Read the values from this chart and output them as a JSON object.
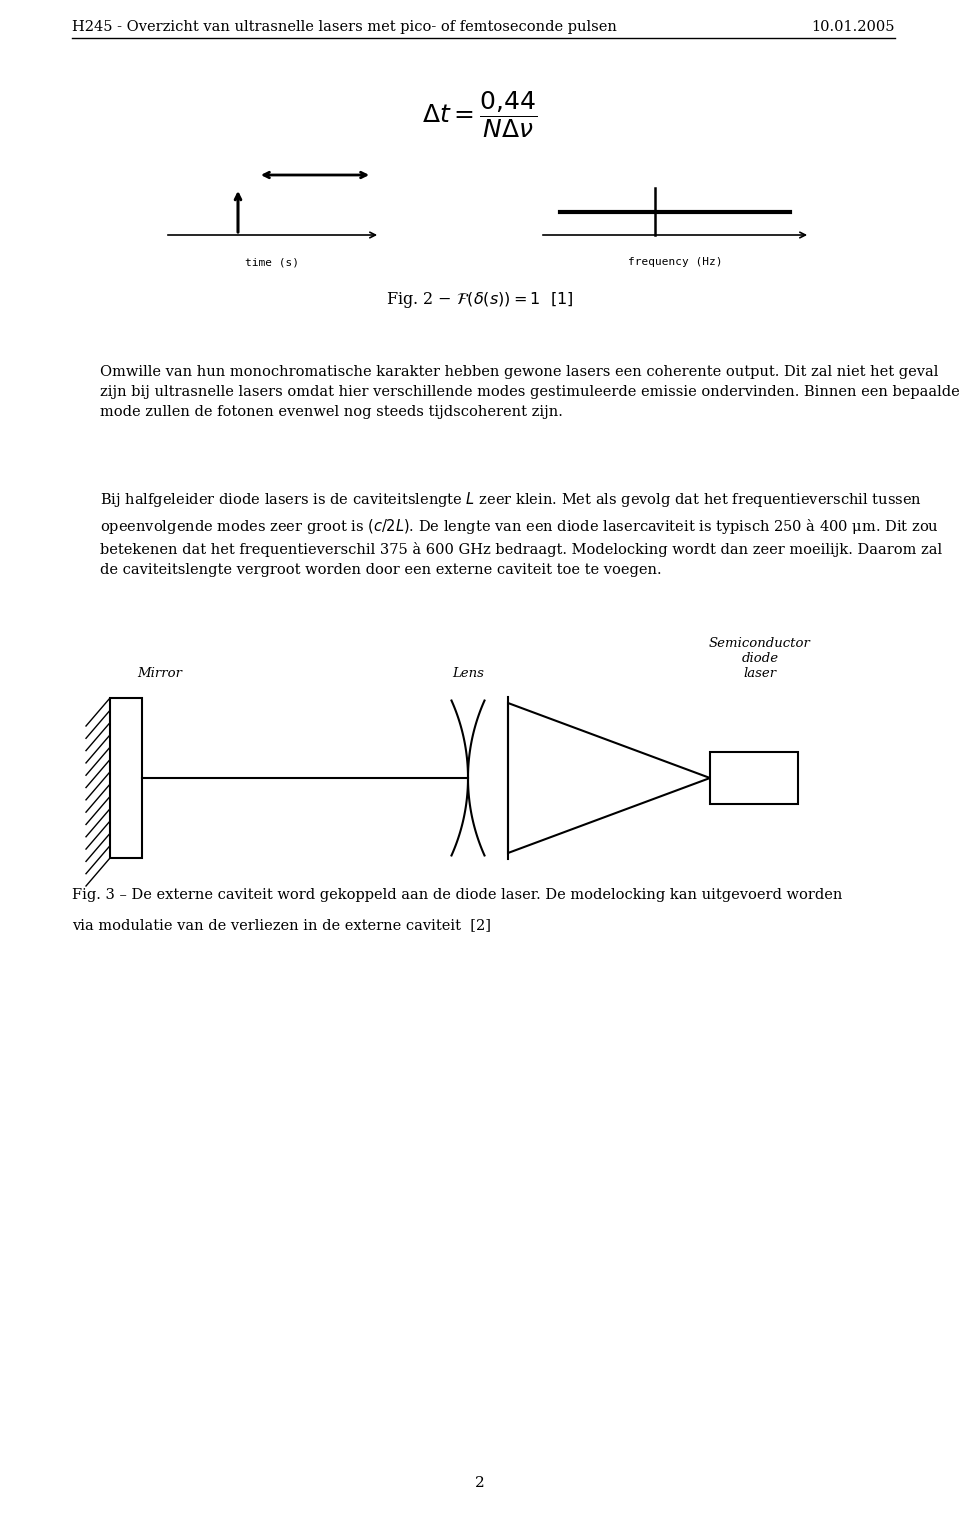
{
  "header_left": "H245 - Overzicht van ultrasnelle lasers met pico- of femtoseconde pulsen",
  "header_right": "10.01.2005",
  "para1": "Omwille van hun monochromatische karakter hebben gewone lasers een coherente output. Dit zal niet het geval zijn bij ultrasnelle lasers omdat hier verschillende modes gestimuleerde emissie ondervinden. Binnen een bepaalde mode zullen de fotonen evenwel nog steeds tijdscoherent zijn.",
  "para2": "Bij halfgeleider diode lasers is de caviteitslengte $L$ zeer klein. Met als gevolg dat het frequentieverschil tussen opeenvolgende modes zeer groot is $(c/2L)$. De lengte van een diode lasercaviteit is typisch 250 à 400 μm. Dit zou betekenen dat het frequentieverschil 375 à 600 GHz bedraagt. Modelocking wordt dan zeer moeilijk. Daarom zal de caviteitslengte vergroot worden door een externe caviteit toe te voegen.",
  "mirror_label": "Mirror",
  "lens_label": "Lens",
  "laser_label": "Semiconductor\ndiode\nlaser",
  "fig3_line1": "Fig. 3 – De externe caviteit word gekoppeld aan de diode laser. De modelocking kan uitgevoerd worden",
  "fig3_line2": "via modulatie van de verliezen in de externe caviteit  [2]",
  "page_number": "2",
  "bg_color": "#ffffff",
  "text_color": "#000000"
}
